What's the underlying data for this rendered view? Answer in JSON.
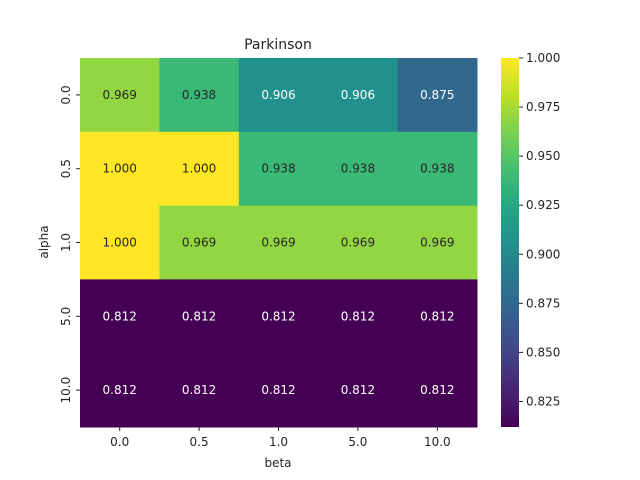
{
  "chart_data": {
    "type": "heatmap",
    "title": "Parkinson",
    "xlabel": "beta",
    "ylabel": "alpha",
    "x_categories": [
      "0.0",
      "0.5",
      "1.0",
      "5.0",
      "10.0"
    ],
    "y_categories": [
      "0.0",
      "0.5",
      "1.0",
      "5.0",
      "10.0"
    ],
    "values": [
      [
        0.969,
        0.938,
        0.906,
        0.906,
        0.875
      ],
      [
        1.0,
        1.0,
        0.938,
        0.938,
        0.938
      ],
      [
        1.0,
        0.969,
        0.969,
        0.969,
        0.969
      ],
      [
        0.812,
        0.812,
        0.812,
        0.812,
        0.812
      ],
      [
        0.812,
        0.812,
        0.812,
        0.812,
        0.812
      ]
    ],
    "value_labels": [
      [
        "0.969",
        "0.938",
        "0.906",
        "0.906",
        "0.875"
      ],
      [
        "1.000",
        "1.000",
        "0.938",
        "0.938",
        "0.938"
      ],
      [
        "1.000",
        "0.969",
        "0.969",
        "0.969",
        "0.969"
      ],
      [
        "0.812",
        "0.812",
        "0.812",
        "0.812",
        "0.812"
      ],
      [
        "0.812",
        "0.812",
        "0.812",
        "0.812",
        "0.812"
      ]
    ],
    "colormap": "viridis",
    "vmin": 0.812,
    "vmax": 1.0,
    "colorbar_ticks": [
      "0.825",
      "0.850",
      "0.875",
      "0.900",
      "0.925",
      "0.950",
      "0.975",
      "1.000"
    ]
  }
}
